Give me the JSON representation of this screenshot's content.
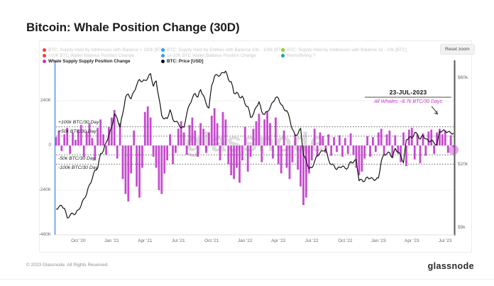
{
  "header": {
    "title": "Bitcoin: Whale Position Change (30D)"
  },
  "controls": {
    "reset_zoom": "Reset zoom"
  },
  "legend": {
    "columns": [
      {
        "items": [
          {
            "dot": "#ff3b30",
            "label": "BTC: Supply Held by Addresses with Balance > 100k [BTC]",
            "active": false
          },
          {
            "dot": "#ff3b30",
            "label": ">10K BTC Wallet Balance Position Change",
            "active": false
          },
          {
            "dot": "#b43bd1",
            "label": "Whale Supply Supply Position Change",
            "active": true
          }
        ]
      },
      {
        "items": [
          {
            "dot": "#2f9bff",
            "label": "BTC: Supply Held by Entities with Balance 10k - 100k [BTC]",
            "active": false
          },
          {
            "dot": "#2f9bff",
            "label": "1k-10K BTC Wallet Balance Position Change",
            "active": false
          },
          {
            "dot": "#000000",
            "label": "BTC: Price [USD]",
            "active": true
          }
        ]
      },
      {
        "items": [
          {
            "dot": "#8bd420",
            "label": "BTC: Supply Held by Addresses with Balance 1k - 10k [BTC]",
            "active": false
          },
          {
            "dot": "#12ab7f",
            "label": "Reshuffeling ?",
            "active": false
          },
          {
            "dot": "",
            "label": "...",
            "active": false
          }
        ]
      }
    ]
  },
  "annotation": {
    "date": "23-JUL-2023",
    "note": "All Whales: -8.7k BTC/30 Days",
    "note_color": "#c438c9"
  },
  "watermark": "glassnode",
  "footer": {
    "copyright": "© 2023 Glassnode. All Rights Reserved.",
    "brand": "glassnode"
  },
  "chart_data": {
    "type": "combo",
    "title": "Bitcoin: Whale Position Change (30D)",
    "x_range": "Aug 2020 - Jul 2023",
    "x_ticks": [
      {
        "label": "Oct '20",
        "index": 8
      },
      {
        "label": "Jan '21",
        "index": 20
      },
      {
        "label": "Apr '21",
        "index": 32
      },
      {
        "label": "Jul '21",
        "index": 44
      },
      {
        "label": "Oct '21",
        "index": 56
      },
      {
        "label": "Jan '22",
        "index": 68
      },
      {
        "label": "Apr '22",
        "index": 80
      },
      {
        "label": "Jul '22",
        "index": 92
      },
      {
        "label": "Oct '22",
        "index": 104
      },
      {
        "label": "Jan '23",
        "index": 116
      },
      {
        "label": "Apr '23",
        "index": 128
      },
      {
        "label": "Jul '23",
        "index": 140
      }
    ],
    "left_axis": {
      "unit": "BTC per 30 days (thousands)",
      "ticks": [
        {
          "label": "240K",
          "value": 240
        },
        {
          "label": "0",
          "value": 0
        },
        {
          "label": "-240K",
          "value": -240
        },
        {
          "label": "-480K",
          "value": -480
        }
      ]
    },
    "right_axis": {
      "scale": "log",
      "unit": "USD",
      "ticks": [
        {
          "label": "$60k",
          "value": 60000
        },
        {
          "label": "$20k",
          "value": 20000
        },
        {
          "label": "$9k",
          "value": 9000
        }
      ]
    },
    "reference_lines": [
      {
        "label": "+100k BTC/30 Day",
        "value": 100
      },
      {
        "label": "+50k BTC/30 Day",
        "value": 50
      },
      {
        "label": "-50k BTC/30 Day",
        "value": -50
      },
      {
        "label": "-100k BTC/30 Day",
        "value": -100
      }
    ],
    "series": [
      {
        "name": "Whale Supply Supply Position Change",
        "type": "bar",
        "axis": "left",
        "color": "#c13ccc",
        "values": [
          45,
          80,
          -30,
          60,
          95,
          -45,
          70,
          30,
          85,
          110,
          -60,
          75,
          120,
          40,
          -80,
          95,
          140,
          60,
          -50,
          100,
          150,
          190,
          -70,
          120,
          -180,
          -260,
          -300,
          -150,
          80,
          -220,
          -280,
          -120,
          180,
          210,
          150,
          -60,
          -120,
          -240,
          -260,
          -150,
          -80,
          60,
          -100,
          -40,
          90,
          130,
          70,
          -50,
          110,
          150,
          80,
          -60,
          120,
          90,
          -40,
          70,
          160,
          200,
          120,
          -80,
          180,
          140,
          -100,
          -160,
          -180,
          -120,
          -200,
          -80,
          100,
          -140,
          -60,
          90,
          130,
          170,
          -90,
          140,
          180,
          120,
          -70,
          150,
          -100,
          -150,
          80,
          -120,
          -180,
          -90,
          60,
          -130,
          -220,
          -320,
          -280,
          -150,
          -80,
          90,
          -60,
          70,
          50,
          -40,
          60,
          -55,
          45,
          -35,
          55,
          -60,
          40,
          -45,
          65,
          -50,
          -120,
          -160,
          -140,
          -70,
          50,
          -60,
          45,
          -35,
          70,
          90,
          -50,
          60,
          80,
          -65,
          55,
          -45,
          -90,
          70,
          -110,
          85,
          95,
          -75,
          60,
          -95,
          65,
          -55,
          75,
          85,
          -45,
          70,
          90,
          60,
          80,
          -40,
          55,
          -8.7
        ]
      },
      {
        "name": "BTC: Price [USD]",
        "type": "line",
        "axis": "right",
        "color": "#141414",
        "values": [
          11400,
          11700,
          11900,
          11500,
          10200,
          10500,
          10800,
          10700,
          11300,
          11900,
          13000,
          13800,
          15500,
          16700,
          18700,
          19200,
          23000,
          23800,
          26500,
          29000,
          32000,
          38000,
          35800,
          32200,
          38300,
          47000,
          48900,
          46100,
          50400,
          54800,
          58900,
          57300,
          58200,
          59800,
          63500,
          54000,
          57800,
          46700,
          37300,
          35700,
          35900,
          40100,
          35500,
          34500,
          33800,
          31800,
          32100,
          38200,
          42800,
          46300,
          49300,
          47100,
          51800,
          48100,
          43200,
          41000,
          54700,
          61300,
          62300,
          61900,
          64300,
          65500,
          58700,
          57300,
          49400,
          50100,
          46900,
          47700,
          43100,
          41800,
          36400,
          37900,
          41500,
          44400,
          39100,
          37800,
          39300,
          41000,
          44300,
          46800,
          46400,
          42800,
          40400,
          39700,
          36000,
          31300,
          29000,
          29500,
          31700,
          22500,
          21100,
          19000,
          19200,
          20800,
          22500,
          23300,
          23800,
          24400,
          21300,
          20000,
          19800,
          18800,
          19400,
          19600,
          19100,
          19200,
          20800,
          20600,
          21300,
          16300,
          16500,
          16200,
          17100,
          16800,
          16700,
          16500,
          16900,
          20900,
          22700,
          23000,
          23300,
          21800,
          24600,
          23500,
          22400,
          20500,
          27400,
          28300,
          28000,
          30000,
          29300,
          27600,
          29000,
          27700,
          26900,
          27200,
          26300,
          25700,
          30500,
          30700,
          30600,
          30300,
          29900,
          29800
        ]
      }
    ],
    "last_point": {
      "date": "23-JUL-2023",
      "whale_change": -8.7,
      "highlighted": true
    }
  }
}
